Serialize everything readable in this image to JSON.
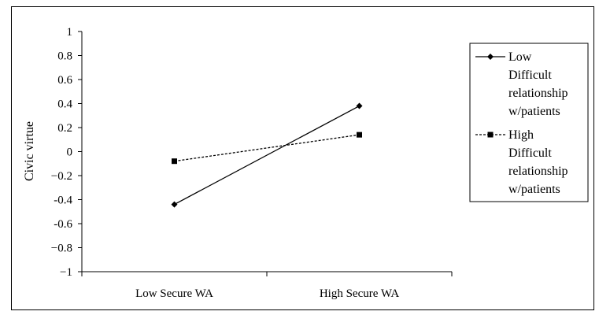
{
  "header": {
    "left_fragment": "",
    "right_fragment": ""
  },
  "chart_data": {
    "type": "line",
    "title": "",
    "xlabel": "",
    "ylabel": "Civic virtue",
    "categories": [
      "Low Secure WA",
      "High Secure WA"
    ],
    "ylim": [
      -1,
      1
    ],
    "yticks": [
      1,
      0.8,
      0.6,
      0.4,
      0.2,
      0,
      -0.2,
      -0.4,
      -0.6,
      -0.8,
      -1
    ],
    "ytick_labels": [
      "1",
      "0.8",
      "0.6",
      "0.4",
      "0.2",
      "0",
      "−0.2",
      "-0.4",
      "-0.6",
      "−0.8",
      "−1"
    ],
    "grid": false,
    "legend_position": "right",
    "series": [
      {
        "name": "Low Difficult relationship w/patients",
        "legend_lines": [
          "Low",
          "Difficult",
          "relationship",
          "w/patients"
        ],
        "values": [
          -0.44,
          0.38
        ],
        "line_style": "solid",
        "marker": "diamond",
        "color": "#000000"
      },
      {
        "name": "High Difficult relationship w/patients",
        "legend_lines": [
          "High",
          "Difficult",
          "relationship",
          "w/patients"
        ],
        "values": [
          -0.08,
          0.14
        ],
        "line_style": "dashed",
        "marker": "square",
        "color": "#000000"
      }
    ]
  }
}
